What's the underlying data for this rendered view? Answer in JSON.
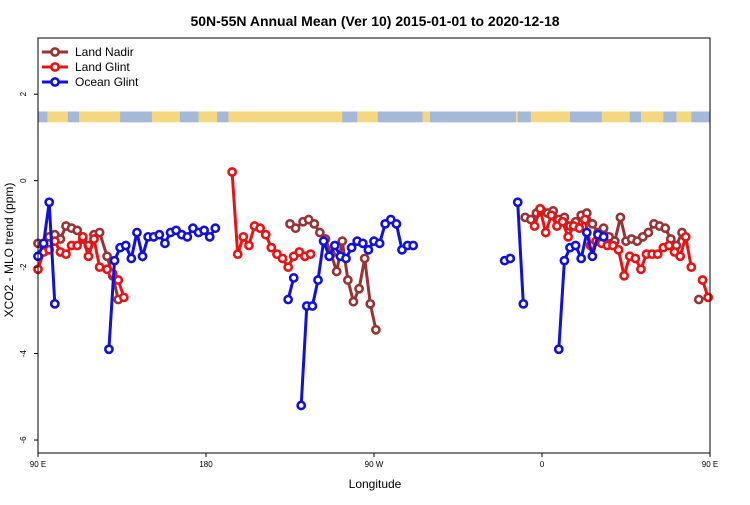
{
  "chart_data": {
    "type": "line",
    "title": "50N-55N Annual Mean (Ver 10)   2015-01-01 to 2020-12-18",
    "xlabel": "Longitude",
    "ylabel": "XCO2 - MLO trend (ppm)",
    "xlim": [
      90,
      450
    ],
    "ylim": [
      -6.3,
      3.3
    ],
    "x_ticks": [
      {
        "value": 90,
        "label": "90 E"
      },
      {
        "value": 180,
        "label": "180"
      },
      {
        "value": 270,
        "label": "90 W"
      },
      {
        "value": 360,
        "label": "0"
      },
      {
        "value": 450,
        "label": "90 E"
      },
      {
        "value": 540,
        "label": "180"
      }
    ],
    "y_ticks": [
      {
        "value": 2,
        "label": "2"
      },
      {
        "value": 0,
        "label": "0"
      },
      {
        "value": -2,
        "label": "-2"
      },
      {
        "value": -4,
        "label": "-4"
      },
      {
        "value": -6,
        "label": "-6"
      }
    ],
    "legend_position": "top-left",
    "landmask_band": {
      "y_top": 1.6,
      "y_bottom": 1.35,
      "ocean_color": "#a4b8d8",
      "land_color": "#f5d77f"
    },
    "series": [
      {
        "name": "Land Nadir",
        "color": "#993333",
        "segments": [
          [
            [
              90,
              -1.45
            ],
            [
              93,
              -1.5
            ],
            [
              96,
              -1.3
            ],
            [
              99,
              -1.25
            ],
            [
              102,
              -1.35
            ],
            [
              105,
              -1.05
            ],
            [
              108,
              -1.1
            ],
            [
              111,
              -1.15
            ],
            [
              114,
              -1.35
            ],
            [
              117,
              -1.5
            ],
            [
              120,
              -1.25
            ],
            [
              123,
              -1.2
            ],
            [
              127,
              -1.75
            ],
            [
              130,
              -2.2
            ],
            [
              133,
              -2.75
            ]
          ],
          [
            [
              225,
              -1.0
            ],
            [
              228,
              -1.1
            ],
            [
              232,
              -0.95
            ],
            [
              235,
              -0.9
            ],
            [
              238,
              -1.0
            ],
            [
              241,
              -1.2
            ],
            [
              244,
              -1.35
            ],
            [
              247,
              -1.7
            ],
            [
              250,
              -2.1
            ],
            [
              253,
              -1.4
            ],
            [
              256,
              -2.3
            ],
            [
              259,
              -2.8
            ],
            [
              262,
              -2.5
            ],
            [
              265,
              -1.8
            ],
            [
              268,
              -2.85
            ],
            [
              271,
              -3.45
            ]
          ],
          [
            [
              351,
              -0.85
            ],
            [
              354,
              -0.9
            ],
            [
              357,
              -0.75
            ],
            [
              360,
              -0.7
            ],
            [
              363,
              -0.75
            ],
            [
              366,
              -0.7
            ],
            [
              369,
              -0.9
            ],
            [
              372,
              -0.85
            ],
            [
              375,
              -1.05
            ],
            [
              378,
              -0.95
            ],
            [
              381,
              -0.8
            ],
            [
              384,
              -0.75
            ],
            [
              387,
              -1.0
            ],
            [
              390,
              -1.2
            ],
            [
              393,
              -1.1
            ],
            [
              396,
              -1.3
            ],
            [
              399,
              -1.4
            ],
            [
              402,
              -0.85
            ],
            [
              405,
              -1.4
            ],
            [
              408,
              -1.35
            ],
            [
              411,
              -1.4
            ],
            [
              414,
              -1.3
            ],
            [
              417,
              -1.2
            ],
            [
              420,
              -1.0
            ],
            [
              423,
              -1.05
            ],
            [
              426,
              -1.1
            ],
            [
              429,
              -1.35
            ],
            [
              432,
              -1.5
            ],
            [
              435,
              -1.2
            ]
          ],
          [
            [
              444,
              -2.75
            ]
          ]
        ]
      },
      {
        "name": "Land Glint",
        "color": "#ee1111",
        "segments": [
          [
            [
              90,
              -2.05
            ],
            [
              93,
              -1.65
            ],
            [
              96,
              -1.6
            ],
            [
              99,
              -1.4
            ],
            [
              102,
              -1.65
            ],
            [
              105,
              -1.7
            ],
            [
              108,
              -1.5
            ],
            [
              111,
              -1.5
            ],
            [
              114,
              -1.3
            ],
            [
              117,
              -1.75
            ],
            [
              120,
              -1.35
            ],
            [
              123,
              -2.0
            ],
            [
              127,
              -2.05
            ],
            [
              130,
              -2.15
            ],
            [
              133,
              -2.3
            ],
            [
              136,
              -2.7
            ]
          ],
          [
            [
              194,
              0.2
            ],
            [
              197,
              -1.7
            ],
            [
              200,
              -1.3
            ],
            [
              203,
              -1.5
            ],
            [
              206,
              -1.05
            ],
            [
              209,
              -1.1
            ],
            [
              212,
              -1.25
            ],
            [
              215,
              -1.55
            ],
            [
              218,
              -1.7
            ],
            [
              221,
              -1.8
            ],
            [
              224,
              -2.0
            ],
            [
              227,
              -1.75
            ],
            [
              230,
              -1.65
            ],
            [
              233,
              -1.75
            ],
            [
              236,
              -1.7
            ]
          ],
          [
            [
              356,
              -1.05
            ],
            [
              359,
              -0.65
            ],
            [
              362,
              -1.2
            ],
            [
              365,
              -0.8
            ],
            [
              368,
              -1.05
            ],
            [
              371,
              -0.95
            ],
            [
              374,
              -1.3
            ],
            [
              377,
              -1.05
            ],
            [
              380,
              -1.1
            ],
            [
              383,
              -0.9
            ],
            [
              386,
              -1.5
            ],
            [
              389,
              -1.4
            ],
            [
              392,
              -1.45
            ],
            [
              395,
              -1.5
            ],
            [
              398,
              -1.5
            ],
            [
              401,
              -1.6
            ],
            [
              404,
              -2.2
            ],
            [
              407,
              -1.75
            ],
            [
              410,
              -1.8
            ],
            [
              413,
              -2.05
            ],
            [
              416,
              -1.7
            ],
            [
              419,
              -1.7
            ],
            [
              422,
              -1.7
            ],
            [
              425,
              -1.55
            ],
            [
              428,
              -1.5
            ],
            [
              431,
              -1.65
            ],
            [
              434,
              -1.75
            ],
            [
              437,
              -1.3
            ],
            [
              440,
              -2.0
            ]
          ],
          [
            [
              446,
              -2.3
            ],
            [
              449,
              -2.7
            ]
          ]
        ]
      },
      {
        "name": "Ocean Glint",
        "color": "#1111dd",
        "segments": [
          [
            [
              90,
              -1.75
            ],
            [
              93,
              -1.45
            ],
            [
              96,
              -0.5
            ],
            [
              99,
              -2.85
            ]
          ],
          [
            [
              128,
              -3.9
            ],
            [
              131,
              -1.85
            ],
            [
              134,
              -1.55
            ],
            [
              137,
              -1.5
            ],
            [
              140,
              -1.8
            ],
            [
              143,
              -1.2
            ],
            [
              146,
              -1.75
            ],
            [
              149,
              -1.3
            ],
            [
              152,
              -1.3
            ],
            [
              155,
              -1.25
            ],
            [
              158,
              -1.45
            ],
            [
              161,
              -1.2
            ],
            [
              164,
              -1.15
            ],
            [
              167,
              -1.25
            ],
            [
              170,
              -1.3
            ],
            [
              173,
              -1.1
            ],
            [
              176,
              -1.2
            ],
            [
              179,
              -1.15
            ],
            [
              182,
              -1.3
            ],
            [
              185,
              -1.1
            ]
          ],
          [
            [
              224,
              -2.75
            ],
            [
              227,
              -2.25
            ]
          ],
          [
            [
              231,
              -5.2
            ],
            [
              234,
              -2.9
            ],
            [
              237,
              -2.9
            ],
            [
              240,
              -2.3
            ],
            [
              243,
              -1.4
            ],
            [
              246,
              -1.75
            ],
            [
              249,
              -1.5
            ],
            [
              252,
              -1.75
            ],
            [
              255,
              -1.8
            ],
            [
              258,
              -1.55
            ],
            [
              261,
              -1.4
            ],
            [
              264,
              -1.45
            ],
            [
              267,
              -1.6
            ],
            [
              270,
              -1.4
            ],
            [
              273,
              -1.45
            ],
            [
              276,
              -1.0
            ],
            [
              279,
              -0.9
            ],
            [
              282,
              -1.0
            ],
            [
              285,
              -1.6
            ],
            [
              288,
              -1.5
            ],
            [
              291,
              -1.5
            ]
          ],
          [
            [
              340,
              -1.85
            ],
            [
              343,
              -1.8
            ]
          ],
          [
            [
              347,
              -0.5
            ],
            [
              350,
              -2.85
            ]
          ],
          [
            [
              369,
              -3.9
            ],
            [
              372,
              -1.85
            ],
            [
              375,
              -1.55
            ],
            [
              378,
              -1.5
            ],
            [
              381,
              -1.8
            ],
            [
              384,
              -1.2
            ],
            [
              387,
              -1.75
            ],
            [
              390,
              -1.25
            ],
            [
              393,
              -1.3
            ]
          ]
        ]
      }
    ]
  }
}
